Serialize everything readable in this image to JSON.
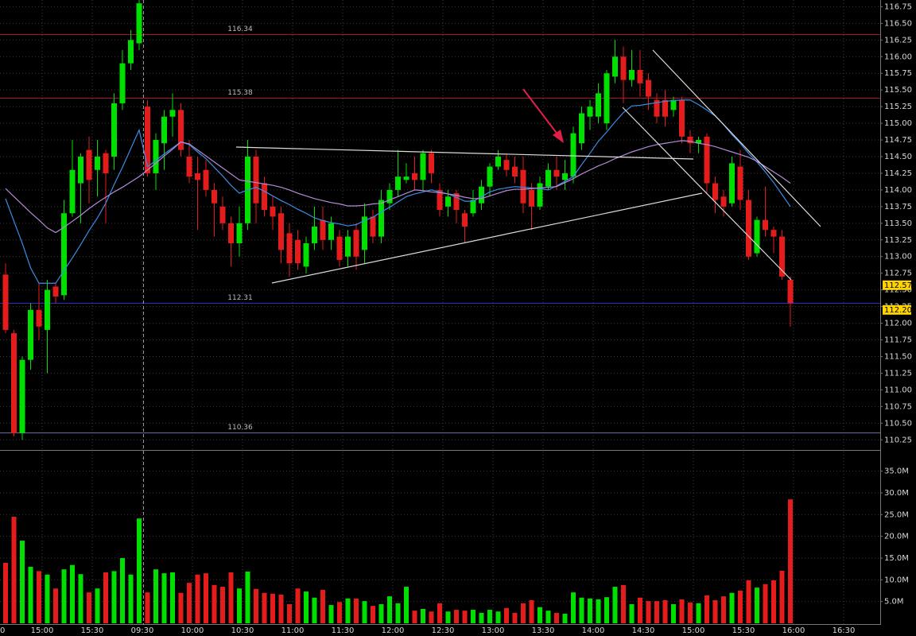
{
  "chart_data": {
    "type": "candlestick",
    "up_color": "#00e000",
    "down_color": "#e51c1c",
    "grid": true,
    "ylim": [
      110.11,
      116.85
    ],
    "yticks": [
      110.25,
      {
        "value": 110.5,
        "label": "110.50"
      },
      110.75,
      {
        "value": 111,
        "label": "111.00"
      },
      111.25,
      {
        "value": 111.5,
        "label": "111.50"
      },
      111.75,
      {
        "value": 112,
        "label": "112.00"
      },
      112.25,
      {
        "value": 112.5,
        "label": "112.50"
      },
      112.75,
      {
        "value": 113,
        "label": "113.00"
      },
      113.25,
      {
        "value": 113.5,
        "label": "113.50"
      },
      113.75,
      {
        "value": 114,
        "label": "114.00"
      },
      114.25,
      {
        "value": 114.5,
        "label": "114.50"
      },
      114.75,
      {
        "value": 115,
        "label": "115.00"
      },
      115.25,
      {
        "value": 115.5,
        "label": "115.50"
      },
      115.75,
      {
        "value": 116,
        "label": "116.00"
      },
      116.25,
      {
        "value": 116.5,
        "label": "116.50"
      },
      116.75
    ],
    "x_labels": [
      "0",
      "15:00",
      "15:30",
      "09:30",
      "10:00",
      "10:30",
      "11:00",
      "11:30",
      "12:00",
      "12:30",
      "13:00",
      "13:30",
      "14:00",
      "14:30",
      "15:00",
      "15:30",
      "16:00",
      "16:30"
    ],
    "open": [
      112.73,
      111.85,
      110.35,
      111.45,
      112.2,
      111.9,
      112.55,
      112.42,
      113.65,
      114.1,
      114.6,
      114.3,
      114.55,
      114.5,
      115.3,
      115.9,
      116.2,
      115.25,
      114.25,
      114.7,
      115.1,
      115.2,
      114.5,
      114.25,
      114.3,
      114.0,
      113.75,
      113.5,
      113.2,
      113.5,
      114.5,
      114.1,
      113.75,
      113.65,
      113.35,
      113.25,
      112.85,
      113.2,
      113.55,
      113.25,
      113.3,
      113.0,
      113.4,
      113.1,
      113.6,
      113.3,
      113.8,
      114.0,
      114.15,
      114.25,
      114.15,
      114.55,
      114.0,
      113.75,
      113.95,
      113.65,
      113.65,
      113.8,
      114.05,
      114.35,
      114.45,
      114.35,
      114.3,
      114.0,
      113.75,
      114.05,
      114.3,
      114.15,
      114.2,
      114.7,
      115.1,
      115.1,
      115.0,
      115.7,
      116.0,
      115.65,
      115.8,
      115.65,
      115.35,
      115.35,
      115.2,
      115.35,
      114.8,
      114.7,
      114.8,
      114.1,
      113.9,
      113.8,
      114.35,
      113.85,
      113.05,
      113.55,
      113.4,
      113.3,
      112.65
    ],
    "high": [
      112.9,
      111.9,
      111.5,
      112.3,
      112.6,
      112.65,
      112.6,
      113.85,
      114.75,
      114.55,
      114.8,
      114.75,
      114.6,
      115.45,
      116.1,
      116.4,
      116.9,
      115.35,
      114.85,
      115.2,
      115.45,
      115.3,
      114.75,
      114.5,
      114.45,
      114.1,
      113.9,
      113.6,
      113.75,
      114.75,
      114.6,
      114.2,
      113.9,
      113.75,
      113.5,
      113.4,
      113.3,
      113.75,
      113.75,
      113.6,
      113.4,
      113.4,
      113.5,
      113.8,
      113.7,
      114.0,
      114.1,
      114.6,
      114.4,
      114.5,
      114.6,
      114.6,
      114.1,
      114.0,
      114.0,
      113.7,
      114.0,
      114.15,
      114.4,
      114.6,
      114.55,
      114.5,
      114.5,
      114.1,
      114.2,
      114.4,
      114.5,
      114.45,
      114.95,
      115.25,
      115.35,
      115.6,
      115.8,
      116.25,
      116.15,
      116.1,
      116.1,
      115.75,
      115.45,
      115.5,
      115.4,
      115.4,
      114.9,
      114.8,
      114.85,
      114.2,
      114.0,
      114.5,
      114.6,
      114.0,
      113.6,
      114.05,
      113.45,
      113.4,
      112.7
    ],
    "low": [
      111.85,
      110.3,
      110.25,
      111.3,
      111.75,
      111.25,
      112.3,
      112.35,
      113.6,
      113.5,
      113.8,
      113.9,
      113.5,
      114.3,
      115.2,
      115.8,
      116.1,
      114.2,
      114.0,
      114.3,
      114.8,
      114.5,
      114.1,
      113.4,
      113.9,
      113.3,
      113.4,
      112.85,
      113.0,
      113.4,
      113.5,
      113.6,
      113.4,
      112.9,
      112.7,
      112.8,
      112.75,
      113.1,
      113.1,
      113.1,
      112.85,
      112.85,
      112.8,
      112.9,
      113.2,
      113.2,
      113.7,
      113.9,
      114.1,
      114.0,
      114.0,
      114.1,
      113.6,
      113.6,
      113.5,
      113.2,
      113.6,
      113.7,
      113.9,
      114.3,
      114.2,
      114.1,
      113.65,
      113.4,
      113.7,
      114.0,
      114.0,
      114.0,
      114.1,
      114.6,
      114.9,
      115.0,
      114.9,
      115.6,
      115.3,
      115.55,
      115.4,
      115.2,
      115.0,
      114.95,
      115.1,
      114.7,
      114.55,
      114.55,
      113.95,
      113.65,
      113.6,
      113.75,
      113.7,
      112.95,
      113.0,
      113.3,
      113.05,
      112.65,
      111.95
    ],
    "close": [
      111.9,
      110.35,
      111.45,
      112.2,
      111.95,
      112.5,
      112.4,
      113.65,
      114.3,
      114.5,
      114.15,
      114.5,
      114.25,
      115.3,
      115.9,
      116.25,
      116.8,
      114.25,
      114.75,
      115.1,
      115.2,
      114.6,
      114.2,
      114.15,
      114.0,
      113.8,
      113.5,
      113.2,
      113.5,
      114.5,
      113.8,
      113.7,
      113.6,
      113.1,
      112.9,
      112.9,
      113.2,
      113.45,
      113.25,
      113.5,
      112.95,
      113.3,
      113.0,
      113.6,
      113.3,
      113.85,
      114.0,
      114.2,
      114.2,
      114.15,
      114.55,
      114.25,
      113.7,
      113.9,
      113.7,
      113.45,
      113.85,
      114.05,
      114.35,
      114.5,
      114.3,
      114.2,
      113.8,
      113.75,
      114.1,
      114.3,
      114.2,
      114.25,
      114.85,
      115.15,
      115.25,
      115.45,
      115.75,
      116.0,
      115.65,
      115.8,
      115.6,
      115.4,
      115.1,
      115.1,
      115.35,
      114.8,
      114.7,
      114.75,
      114.1,
      113.85,
      113.75,
      114.4,
      113.85,
      113.0,
      113.55,
      113.4,
      113.3,
      112.7,
      112.3
    ],
    "moving_averages": [
      {
        "color": "#3a8ee6",
        "values": [
          113.87,
          113.53,
          113.2,
          112.83,
          112.6,
          112.6,
          112.6,
          112.79,
          112.98,
          113.18,
          113.39,
          113.58,
          113.8,
          114.08,
          114.34,
          114.62,
          114.9,
          114.35,
          114.44,
          114.54,
          114.63,
          114.72,
          114.68,
          114.57,
          114.47,
          114.34,
          114.21,
          114.07,
          113.95,
          114.0,
          114.04,
          113.98,
          113.91,
          113.84,
          113.78,
          113.71,
          113.65,
          113.58,
          113.54,
          113.51,
          113.49,
          113.46,
          113.48,
          113.54,
          113.59,
          113.67,
          113.74,
          113.82,
          113.9,
          113.94,
          113.97,
          114.0,
          113.97,
          113.94,
          113.89,
          113.83,
          113.83,
          113.9,
          113.97,
          114.01,
          114.03,
          114.05,
          114.04,
          114.03,
          114.02,
          114.0,
          114.06,
          114.13,
          114.2,
          114.38,
          114.55,
          114.73,
          114.87,
          115.02,
          115.16,
          115.26,
          115.27,
          115.29,
          115.31,
          115.33,
          115.34,
          115.35,
          115.35,
          115.28,
          115.2,
          115.11,
          114.98,
          114.83,
          114.7,
          114.55,
          114.42,
          114.27,
          114.11,
          113.93,
          113.75
        ]
      },
      {
        "color": "#b48ad8",
        "values": [
          114.02,
          113.9,
          113.78,
          113.66,
          113.55,
          113.43,
          113.36,
          113.44,
          113.53,
          113.62,
          113.72,
          113.81,
          113.89,
          113.97,
          114.04,
          114.12,
          114.2,
          114.3,
          114.4,
          114.51,
          114.61,
          114.72,
          114.69,
          114.6,
          114.51,
          114.42,
          114.33,
          114.24,
          114.15,
          114.13,
          114.11,
          114.09,
          114.07,
          114.04,
          114.0,
          113.95,
          113.91,
          113.87,
          113.84,
          113.81,
          113.79,
          113.76,
          113.76,
          113.77,
          113.79,
          113.8,
          113.85,
          113.9,
          113.95,
          114.0,
          113.99,
          113.97,
          113.96,
          113.94,
          113.92,
          113.89,
          113.87,
          113.87,
          113.91,
          113.95,
          113.99,
          114.01,
          114.01,
          114.02,
          114.03,
          114.04,
          114.05,
          114.11,
          114.17,
          114.24,
          114.3,
          114.36,
          114.41,
          114.47,
          114.52,
          114.57,
          114.61,
          114.65,
          114.68,
          114.7,
          114.72,
          114.74,
          114.73,
          114.7,
          114.68,
          114.65,
          114.61,
          114.57,
          114.53,
          114.49,
          114.43,
          114.35,
          114.27,
          114.19,
          114.1
        ]
      }
    ],
    "levels": [
      {
        "value": 116.34,
        "color": "#a5162a"
      },
      {
        "value": 115.38,
        "color": "#a5162a"
      },
      {
        "value": 112.31,
        "color": "#2a2ad0"
      },
      {
        "value": 110.36,
        "color": "#6a6aa8"
      }
    ],
    "price_tags": [
      {
        "value": 112.57,
        "label": "112.57"
      },
      {
        "value": 112.2,
        "label": "112.20"
      }
    ],
    "price_tag_color": "#ffd400",
    "volume": {
      "ylim": [
        0,
        39.5
      ],
      "yticks": [
        {
          "value": 5,
          "label": "5.0M"
        },
        {
          "value": 10,
          "label": "10.0M"
        },
        {
          "value": 15,
          "label": "15.0M"
        },
        {
          "value": 20,
          "label": "20.0M"
        },
        {
          "value": 25,
          "label": "25.0M"
        },
        {
          "value": 30,
          "label": "30.0M"
        },
        {
          "value": 35,
          "label": "35.0M"
        }
      ],
      "values": [
        13.9,
        24.5,
        19,
        13,
        12,
        11.2,
        8,
        12.4,
        13.4,
        11.3,
        7.1,
        8,
        11.7,
        12,
        15,
        11.2,
        24.1,
        7.1,
        12.4,
        11.5,
        11.7,
        7,
        9.3,
        11.2,
        11.5,
        8.8,
        8.4,
        11.7,
        8,
        11.9,
        7.9,
        7,
        6.8,
        6.6,
        4.4,
        8,
        7.3,
        5.9,
        7.7,
        4.2,
        4.9,
        5.7,
        5.7,
        5.1,
        4,
        4.4,
        6.2,
        4.6,
        8.4,
        2.9,
        3.3,
        2.7,
        4.6,
        2.7,
        3.1,
        2.9,
        3.1,
        2.4,
        3.1,
        2.7,
        3.5,
        2.4,
        4.6,
        5.3,
        3.7,
        2.9,
        2.4,
        2.2,
        7.1,
        5.9,
        5.7,
        5.5,
        6,
        8.4,
        8.8,
        4.4,
        5.9,
        5.1,
        5.1,
        5.3,
        4.4,
        5.5,
        4.8,
        4.6,
        6.4,
        5.3,
        6.2,
        7,
        7.5,
        9.9,
        8.2,
        9,
        9.9,
        12.1,
        28.5
      ]
    }
  }
}
